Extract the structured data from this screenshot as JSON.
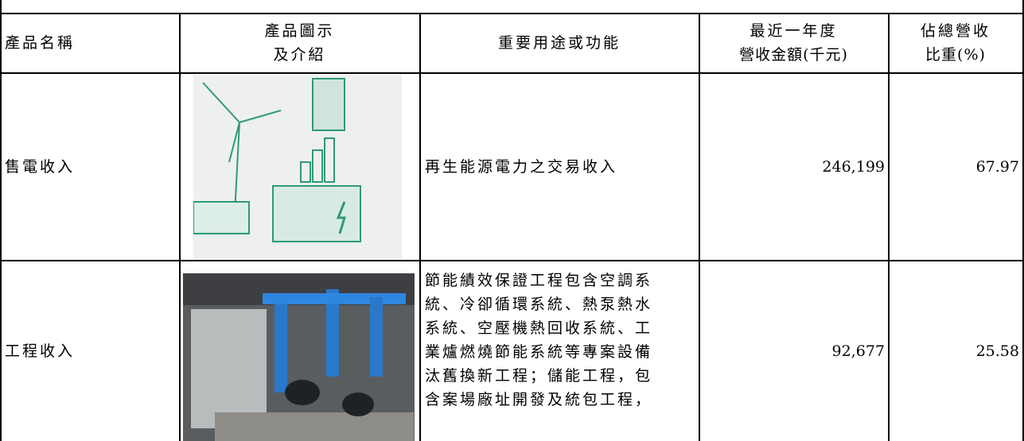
{
  "table": {
    "header": [
      "產品名稱",
      [
        "產品圖示",
        "及介紹"
      ],
      "重要用途或功能",
      [
        "最近一年度",
        "營收金額(千元)"
      ],
      [
        "佔總營收",
        "比重(%)"
      ]
    ],
    "rows": [
      [
        "售電收入",
        "再生能源電力之交易收入",
        "246,199",
        "67.97"
      ],
      [
        "工程收入",
        [
          "節能績效保證工程包含空調系",
          "統、冷卻循環系統、熱泵熱水",
          "系統、空壓機熱回收系統、工",
          "業爐燃燒節能系統等專案設備",
          "汰舊換新工程；儲能工程，包",
          "含案場廠址開發及統包工程，"
        ],
        "92,677",
        "25.58"
      ]
    ]
  }
}
